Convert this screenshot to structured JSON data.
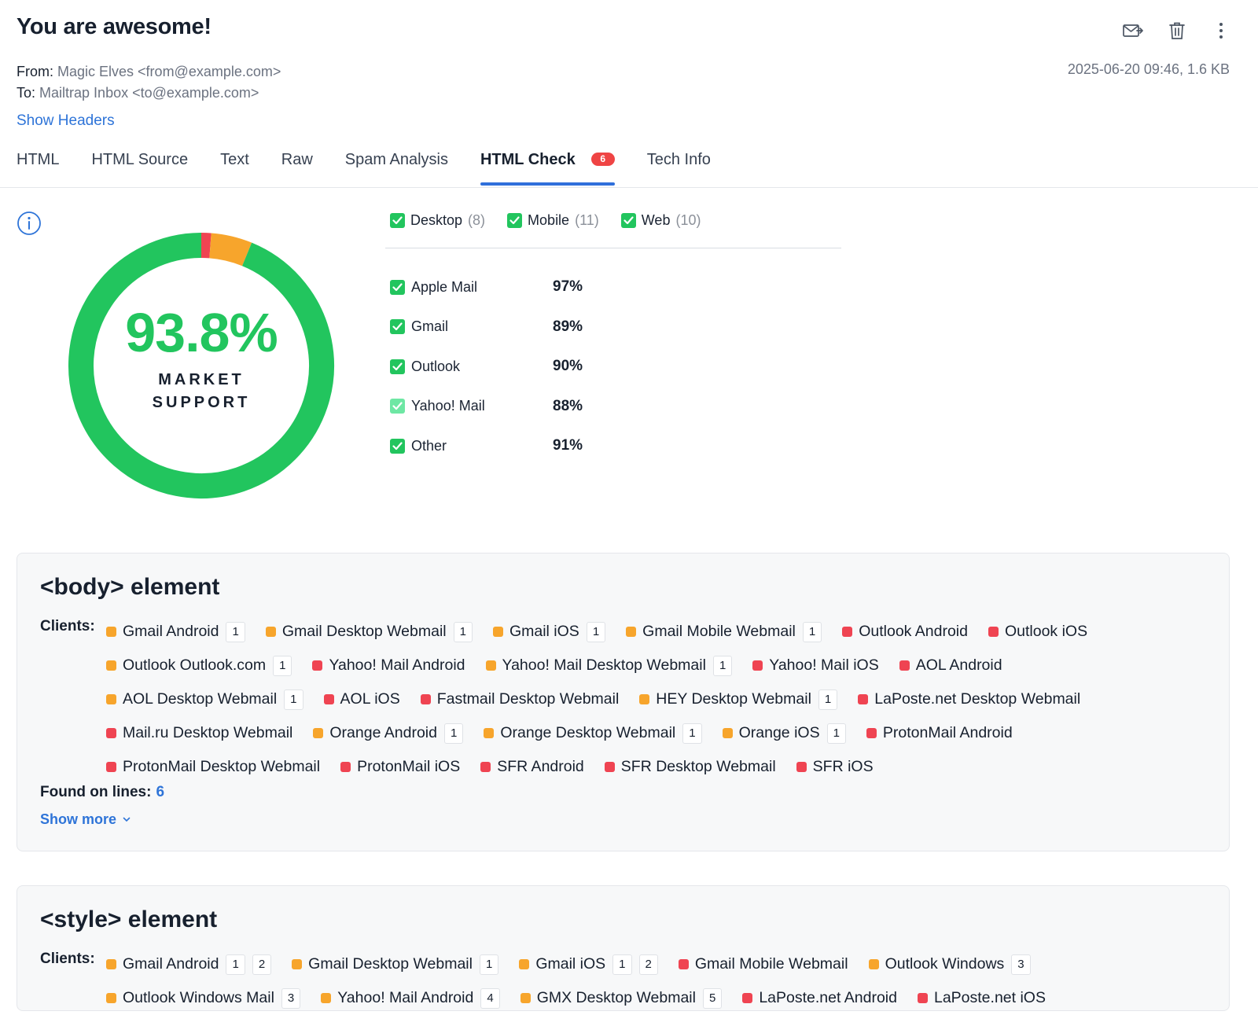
{
  "email": {
    "subject": "You are awesome!",
    "from_label": "From:",
    "from_value": "Magic Elves <from@example.com>",
    "to_label": "To:",
    "to_value": "Mailtrap Inbox <to@example.com>",
    "date_size": "2025-06-20 09:46, 1.6 KB",
    "show_headers": "Show Headers"
  },
  "actions": {
    "forward_icon": "envelope-forward-icon",
    "delete_icon": "trash-icon",
    "more_icon": "more-vertical-icon"
  },
  "tabs": [
    {
      "label": "HTML"
    },
    {
      "label": "HTML Source"
    },
    {
      "label": "Text"
    },
    {
      "label": "Raw"
    },
    {
      "label": "Spam Analysis"
    },
    {
      "label": "HTML Check",
      "badge": "6",
      "active": true
    },
    {
      "label": "Tech Info"
    }
  ],
  "support": {
    "value": "93.8%",
    "label": "MARKET SUPPORT",
    "segments": [
      {
        "name": "supported",
        "fraction": 0.938,
        "color": "#22c55e"
      },
      {
        "name": "red",
        "fraction": 0.012,
        "color": "#ef4452"
      },
      {
        "name": "orange",
        "fraction": 0.05,
        "color": "#f7a52c"
      }
    ]
  },
  "filters": [
    {
      "label": "Desktop",
      "count": "(8)"
    },
    {
      "label": "Mobile",
      "count": "(11)"
    },
    {
      "label": "Web",
      "count": "(10)"
    }
  ],
  "clients": [
    {
      "name": "Apple Mail",
      "pct": "97%"
    },
    {
      "name": "Gmail",
      "pct": "89%"
    },
    {
      "name": "Outlook",
      "pct": "90%"
    },
    {
      "name": "Yahoo! Mail",
      "pct": "88%",
      "light": true
    },
    {
      "name": "Other",
      "pct": "91%"
    }
  ],
  "cards": [
    {
      "title": "<body> element",
      "clients_label": "Clients:",
      "rows": [
        [
          {
            "name": "Gmail Android",
            "color": "orange",
            "nums": [
              "1"
            ]
          },
          {
            "name": "Gmail Desktop Webmail",
            "color": "orange",
            "nums": [
              "1"
            ]
          },
          {
            "name": "Gmail iOS",
            "color": "orange",
            "nums": [
              "1"
            ]
          },
          {
            "name": "Gmail Mobile Webmail",
            "color": "orange",
            "nums": [
              "1"
            ]
          },
          {
            "name": "Outlook Android",
            "color": "red",
            "nums": []
          },
          {
            "name": "Outlook iOS",
            "color": "red",
            "nums": []
          }
        ],
        [
          {
            "name": "Outlook Outlook.com",
            "color": "orange",
            "nums": [
              "1"
            ]
          },
          {
            "name": "Yahoo! Mail Android",
            "color": "red",
            "nums": []
          },
          {
            "name": "Yahoo! Mail Desktop Webmail",
            "color": "orange",
            "nums": [
              "1"
            ]
          },
          {
            "name": "Yahoo! Mail iOS",
            "color": "red",
            "nums": []
          },
          {
            "name": "AOL Android",
            "color": "red",
            "nums": []
          }
        ],
        [
          {
            "name": "AOL Desktop Webmail",
            "color": "orange",
            "nums": [
              "1"
            ]
          },
          {
            "name": "AOL iOS",
            "color": "red",
            "nums": []
          },
          {
            "name": "Fastmail Desktop Webmail",
            "color": "red",
            "nums": []
          },
          {
            "name": "HEY Desktop Webmail",
            "color": "orange",
            "nums": [
              "1"
            ]
          },
          {
            "name": "LaPoste.net Desktop Webmail",
            "color": "red",
            "nums": []
          }
        ],
        [
          {
            "name": "Mail.ru Desktop Webmail",
            "color": "red",
            "nums": []
          },
          {
            "name": "Orange Android",
            "color": "orange",
            "nums": [
              "1"
            ]
          },
          {
            "name": "Orange Desktop Webmail",
            "color": "orange",
            "nums": [
              "1"
            ]
          },
          {
            "name": "Orange iOS",
            "color": "orange",
            "nums": [
              "1"
            ]
          },
          {
            "name": "ProtonMail Android",
            "color": "red",
            "nums": []
          }
        ],
        [
          {
            "name": "ProtonMail Desktop Webmail",
            "color": "red",
            "nums": []
          },
          {
            "name": "ProtonMail iOS",
            "color": "red",
            "nums": []
          },
          {
            "name": "SFR Android",
            "color": "red",
            "nums": []
          },
          {
            "name": "SFR Desktop Webmail",
            "color": "red",
            "nums": []
          },
          {
            "name": "SFR iOS",
            "color": "red",
            "nums": []
          }
        ]
      ],
      "found_label": "Found on lines:",
      "found_lines": "6",
      "show_more": "Show more"
    },
    {
      "title": "<style> element",
      "clients_label": "Clients:",
      "rows": [
        [
          {
            "name": "Gmail Android",
            "color": "orange",
            "nums": [
              "1",
              "2"
            ]
          },
          {
            "name": "Gmail Desktop Webmail",
            "color": "orange",
            "nums": [
              "1"
            ]
          },
          {
            "name": "Gmail iOS",
            "color": "orange",
            "nums": [
              "1",
              "2"
            ]
          },
          {
            "name": "Gmail Mobile Webmail",
            "color": "red",
            "nums": []
          },
          {
            "name": "Outlook Windows",
            "color": "orange",
            "nums": [
              "3"
            ]
          }
        ],
        [
          {
            "name": "Outlook Windows Mail",
            "color": "orange",
            "nums": [
              "3"
            ]
          },
          {
            "name": "Yahoo! Mail Android",
            "color": "orange",
            "nums": [
              "4"
            ]
          },
          {
            "name": "GMX Desktop Webmail",
            "color": "orange",
            "nums": [
              "5"
            ]
          },
          {
            "name": "LaPoste.net Android",
            "color": "red",
            "nums": []
          },
          {
            "name": "LaPoste.net iOS",
            "color": "red",
            "nums": []
          }
        ]
      ]
    }
  ]
}
